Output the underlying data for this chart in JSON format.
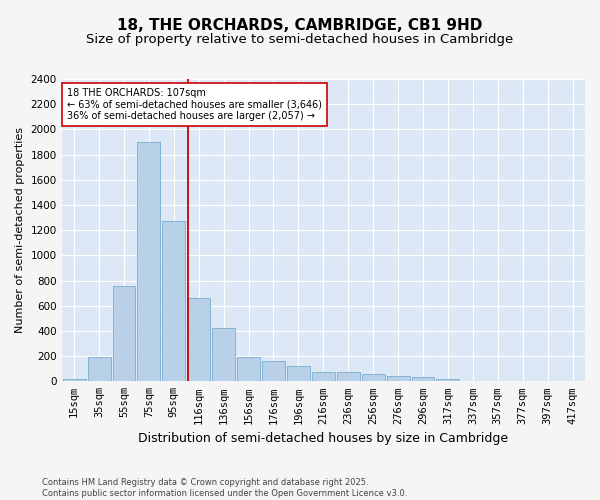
{
  "title1": "18, THE ORCHARDS, CAMBRIDGE, CB1 9HD",
  "title2": "Size of property relative to semi-detached houses in Cambridge",
  "xlabel": "Distribution of semi-detached houses by size in Cambridge",
  "ylabel": "Number of semi-detached properties",
  "categories": [
    "15sqm",
    "35sqm",
    "55sqm",
    "75sqm",
    "95sqm",
    "116sqm",
    "136sqm",
    "156sqm",
    "176sqm",
    "196sqm",
    "216sqm",
    "236sqm",
    "256sqm",
    "276sqm",
    "296sqm",
    "317sqm",
    "337sqm",
    "357sqm",
    "377sqm",
    "397sqm",
    "417sqm"
  ],
  "values": [
    18,
    190,
    760,
    1900,
    1270,
    660,
    420,
    195,
    160,
    120,
    70,
    70,
    55,
    45,
    35,
    18,
    5,
    3,
    2,
    1,
    1
  ],
  "bar_color": "#b8d0e8",
  "bar_edge_color": "#7aabcf",
  "annotation_text": "18 THE ORCHARDS: 107sqm\n← 63% of semi-detached houses are smaller (3,646)\n36% of semi-detached houses are larger (2,057) →",
  "vline_color": "#cc0000",
  "annotation_box_color": "#ffffff",
  "annotation_box_edge_color": "#cc0000",
  "ylim": [
    0,
    2400
  ],
  "yticks": [
    0,
    200,
    400,
    600,
    800,
    1000,
    1200,
    1400,
    1600,
    1800,
    2000,
    2200,
    2400
  ],
  "bg_color": "#dce8f5",
  "grid_color": "#ffffff",
  "fig_bg_color": "#f5f5f5",
  "footer": "Contains HM Land Registry data © Crown copyright and database right 2025.\nContains public sector information licensed under the Open Government Licence v3.0.",
  "title1_fontsize": 11,
  "title2_fontsize": 9.5,
  "xlabel_fontsize": 9,
  "ylabel_fontsize": 8,
  "tick_fontsize": 7.5,
  "footer_fontsize": 6
}
